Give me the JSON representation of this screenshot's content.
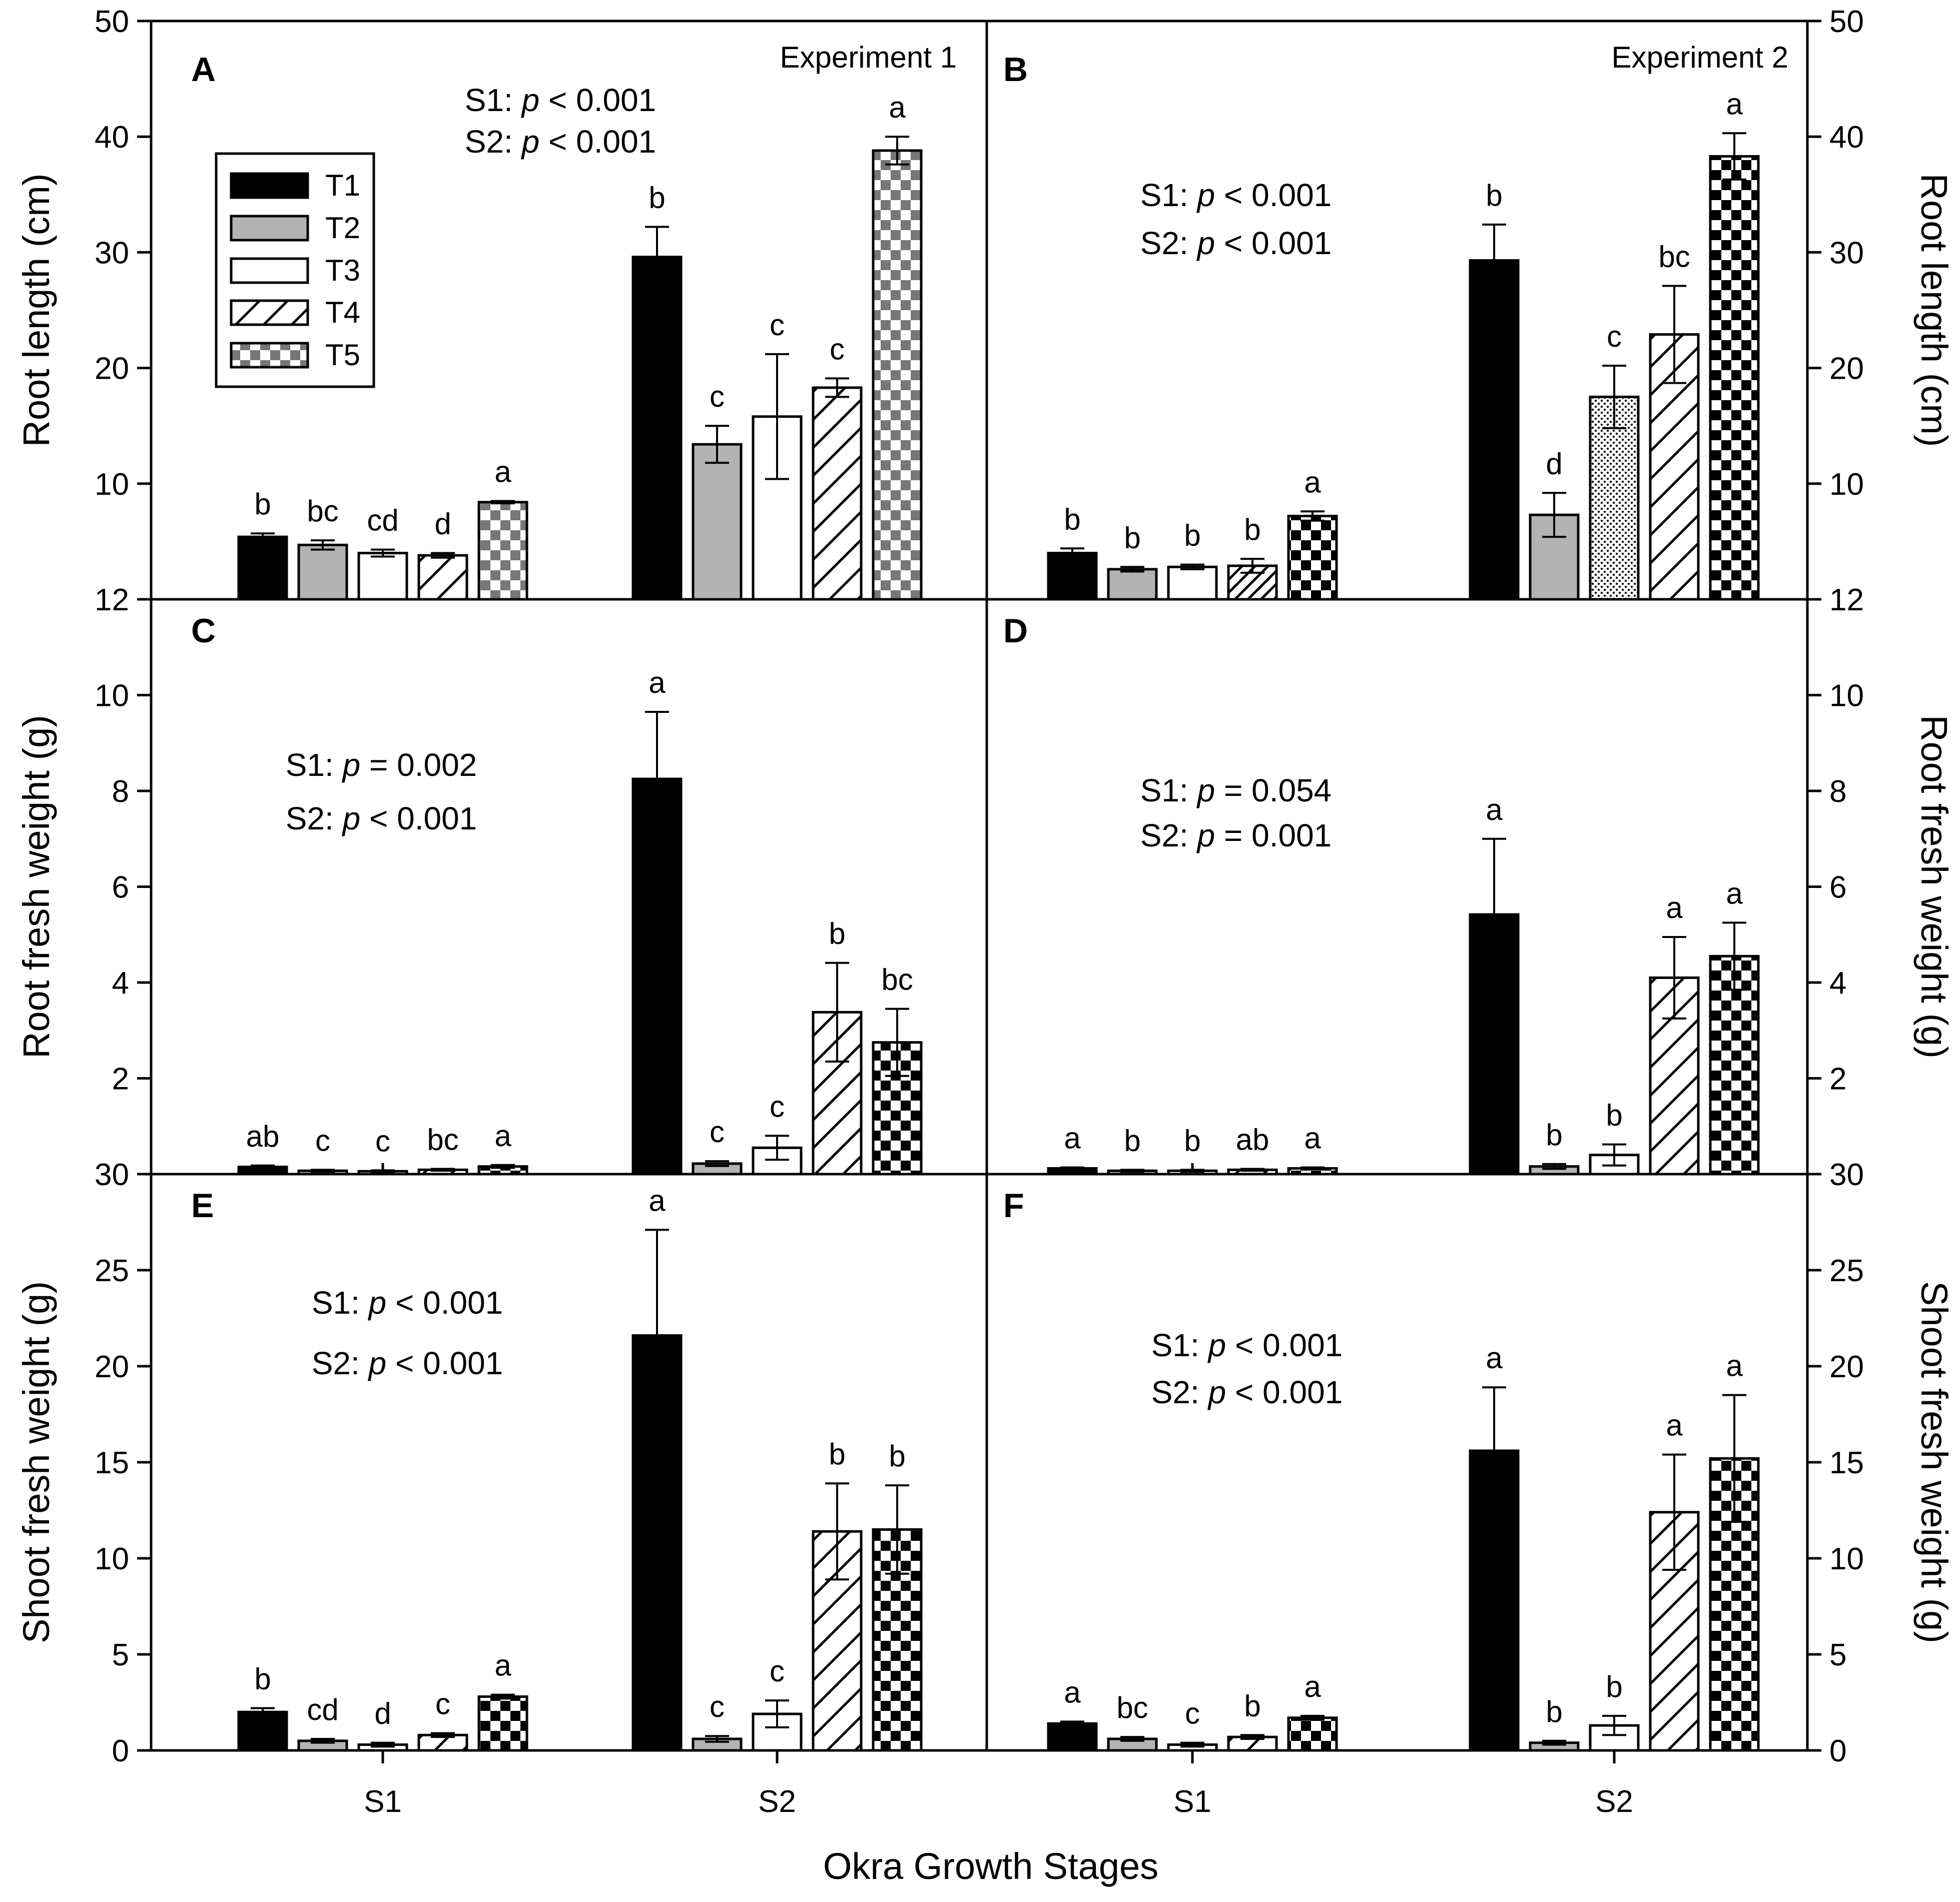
{
  "figure": {
    "xlabel": "Okra Growth Stages",
    "stage_labels": [
      "S1",
      "S2"
    ],
    "legend": [
      "T1",
      "T2",
      "T3",
      "T4",
      "T5"
    ],
    "colors": {
      "black": "#000000",
      "gray": "#b3b3b3",
      "white": "#ffffff"
    }
  },
  "chart_data": [
    {
      "type": "bar",
      "panel": "A",
      "experiment": "Experiment 1",
      "ylabel": "Root length (cm)",
      "ylim": [
        0,
        50
      ],
      "yticks": [
        0,
        10,
        20,
        30,
        40,
        50
      ],
      "ytick_labels": [
        "",
        "10",
        "20",
        "30",
        "40",
        "50"
      ],
      "categories": [
        "S1",
        "S2"
      ],
      "stats": [
        "S1: p < 0.001",
        "S2: p < 0.001"
      ],
      "series": [
        {
          "name": "T1",
          "values": [
            5.4,
            29.6
          ],
          "errors": [
            0.3,
            2.6
          ],
          "letters": [
            "b",
            "b"
          ]
        },
        {
          "name": "T2",
          "values": [
            4.7,
            13.4
          ],
          "errors": [
            0.4,
            1.6
          ],
          "letters": [
            "bc",
            "c"
          ]
        },
        {
          "name": "T3",
          "values": [
            4.0,
            15.8
          ],
          "errors": [
            0.3,
            5.4
          ],
          "letters": [
            "cd",
            "c"
          ]
        },
        {
          "name": "T4",
          "values": [
            3.8,
            18.3
          ],
          "errors": [
            0.2,
            0.8
          ],
          "letters": [
            "d",
            "c"
          ]
        },
        {
          "name": "T5",
          "values": [
            8.4,
            38.8
          ],
          "errors": [
            0.1,
            1.2
          ],
          "letters": [
            "a",
            "a"
          ]
        }
      ]
    },
    {
      "type": "bar",
      "panel": "B",
      "experiment": "Experiment 2",
      "ylabel": "Root length (cm)",
      "ylim": [
        0,
        50
      ],
      "yticks": [
        0,
        10,
        20,
        30,
        40,
        50
      ],
      "ytick_labels": [
        "",
        "10",
        "20",
        "30",
        "40",
        "50"
      ],
      "categories": [
        "S1",
        "S2"
      ],
      "stats": [
        "S1: p < 0.001",
        "S2: p < 0.001"
      ],
      "series": [
        {
          "name": "T1",
          "values": [
            4.0,
            29.3
          ],
          "errors": [
            0.4,
            3.1
          ],
          "letters": [
            "b",
            "b"
          ]
        },
        {
          "name": "T2",
          "values": [
            2.6,
            7.3
          ],
          "errors": [
            0.2,
            1.9
          ],
          "letters": [
            "b",
            "d"
          ]
        },
        {
          "name": "T3",
          "values": [
            2.8,
            17.5
          ],
          "errors": [
            0.2,
            2.7
          ],
          "letters": [
            "b",
            "c"
          ]
        },
        {
          "name": "T4",
          "values": [
            2.9,
            22.9
          ],
          "errors": [
            0.6,
            4.2
          ],
          "letters": [
            "b",
            "bc"
          ]
        },
        {
          "name": "T5",
          "values": [
            7.2,
            38.3
          ],
          "errors": [
            0.4,
            2.0
          ],
          "letters": [
            "a",
            "a"
          ]
        }
      ]
    },
    {
      "type": "bar",
      "panel": "C",
      "ylabel": "Root fresh weight (g)",
      "ylim": [
        0,
        12
      ],
      "yticks": [
        0,
        2,
        4,
        6,
        8,
        10,
        12
      ],
      "ytick_labels": [
        "",
        "2",
        "4",
        "6",
        "8",
        "10",
        "12"
      ],
      "categories": [
        "S1",
        "S2"
      ],
      "stats": [
        "S1: p = 0.002",
        "S2: p < 0.001"
      ],
      "series": [
        {
          "name": "T1",
          "values": [
            0.15,
            8.25
          ],
          "errors": [
            0.03,
            1.4
          ],
          "letters": [
            "ab",
            "a"
          ]
        },
        {
          "name": "T2",
          "values": [
            0.07,
            0.22
          ],
          "errors": [
            0.02,
            0.05
          ],
          "letters": [
            "c",
            "c"
          ]
        },
        {
          "name": "T3",
          "values": [
            0.06,
            0.55
          ],
          "errors": [
            0.02,
            0.25
          ],
          "letters": [
            "c",
            "c"
          ]
        },
        {
          "name": "T4",
          "values": [
            0.09,
            3.38
          ],
          "errors": [
            0.02,
            1.03
          ],
          "letters": [
            "bc",
            "b"
          ]
        },
        {
          "name": "T5",
          "values": [
            0.16,
            2.75
          ],
          "errors": [
            0.03,
            0.7
          ],
          "letters": [
            "a",
            "bc"
          ]
        }
      ]
    },
    {
      "type": "bar",
      "panel": "D",
      "ylabel": "Root fresh weight (g)",
      "ylim": [
        0,
        12
      ],
      "yticks": [
        0,
        2,
        4,
        6,
        8,
        10,
        12
      ],
      "ytick_labels": [
        "",
        "2",
        "4",
        "6",
        "8",
        "10",
        "12"
      ],
      "categories": [
        "S1",
        "S2"
      ],
      "stats": [
        "S1: p = 0.054",
        "S2: p = 0.001"
      ],
      "series": [
        {
          "name": "T1",
          "values": [
            0.12,
            5.42
          ],
          "errors": [
            0.02,
            1.58
          ],
          "letters": [
            "a",
            "a"
          ]
        },
        {
          "name": "T2",
          "values": [
            0.07,
            0.16
          ],
          "errors": [
            0.02,
            0.05
          ],
          "letters": [
            "b",
            "b"
          ]
        },
        {
          "name": "T3",
          "values": [
            0.07,
            0.4
          ],
          "errors": [
            0.02,
            0.22
          ],
          "letters": [
            "b",
            "b"
          ]
        },
        {
          "name": "T4",
          "values": [
            0.09,
            4.1
          ],
          "errors": [
            0.02,
            0.85
          ],
          "letters": [
            "ab",
            "a"
          ]
        },
        {
          "name": "T5",
          "values": [
            0.12,
            4.55
          ],
          "errors": [
            0.02,
            0.7
          ],
          "letters": [
            "a",
            "a"
          ]
        }
      ]
    },
    {
      "type": "bar",
      "panel": "E",
      "ylabel": "Shoot fresh weight (g)",
      "ylim": [
        0,
        30
      ],
      "yticks": [
        0,
        5,
        10,
        15,
        20,
        25,
        30
      ],
      "ytick_labels": [
        "0",
        "5",
        "10",
        "15",
        "20",
        "25",
        "30"
      ],
      "categories": [
        "S1",
        "S2"
      ],
      "stats": [
        "S1: p < 0.001",
        "S2: p < 0.001"
      ],
      "series": [
        {
          "name": "T1",
          "values": [
            2.0,
            21.6
          ],
          "errors": [
            0.2,
            5.5
          ],
          "letters": [
            "b",
            "a"
          ]
        },
        {
          "name": "T2",
          "values": [
            0.5,
            0.6
          ],
          "errors": [
            0.1,
            0.15
          ],
          "letters": [
            "cd",
            "c"
          ]
        },
        {
          "name": "T3",
          "values": [
            0.3,
            1.9
          ],
          "errors": [
            0.1,
            0.7
          ],
          "letters": [
            "d",
            "c"
          ]
        },
        {
          "name": "T4",
          "values": [
            0.8,
            11.4
          ],
          "errors": [
            0.1,
            2.5
          ],
          "letters": [
            "c",
            "b"
          ]
        },
        {
          "name": "T5",
          "values": [
            2.8,
            11.5
          ],
          "errors": [
            0.1,
            2.3
          ],
          "letters": [
            "a",
            "b"
          ]
        }
      ]
    },
    {
      "type": "bar",
      "panel": "F",
      "ylabel": "Shoot fresh weight (g)",
      "ylim": [
        0,
        30
      ],
      "yticks": [
        0,
        5,
        10,
        15,
        20,
        25,
        30
      ],
      "ytick_labels": [
        "0",
        "5",
        "10",
        "15",
        "20",
        "25",
        "30"
      ],
      "categories": [
        "S1",
        "S2"
      ],
      "stats": [
        "S1: p < 0.001",
        "S2: p < 0.001"
      ],
      "series": [
        {
          "name": "T1",
          "values": [
            1.4,
            15.6
          ],
          "errors": [
            0.1,
            3.3
          ],
          "letters": [
            "a",
            "a"
          ]
        },
        {
          "name": "T2",
          "values": [
            0.6,
            0.4
          ],
          "errors": [
            0.1,
            0.1
          ],
          "letters": [
            "bc",
            "b"
          ]
        },
        {
          "name": "T3",
          "values": [
            0.3,
            1.3
          ],
          "errors": [
            0.1,
            0.5
          ],
          "letters": [
            "c",
            "b"
          ]
        },
        {
          "name": "T4",
          "values": [
            0.7,
            12.4
          ],
          "errors": [
            0.1,
            3.0
          ],
          "letters": [
            "b",
            "a"
          ]
        },
        {
          "name": "T5",
          "values": [
            1.7,
            15.2
          ],
          "errors": [
            0.1,
            3.3
          ],
          "letters": [
            "a",
            "a"
          ]
        }
      ]
    }
  ]
}
